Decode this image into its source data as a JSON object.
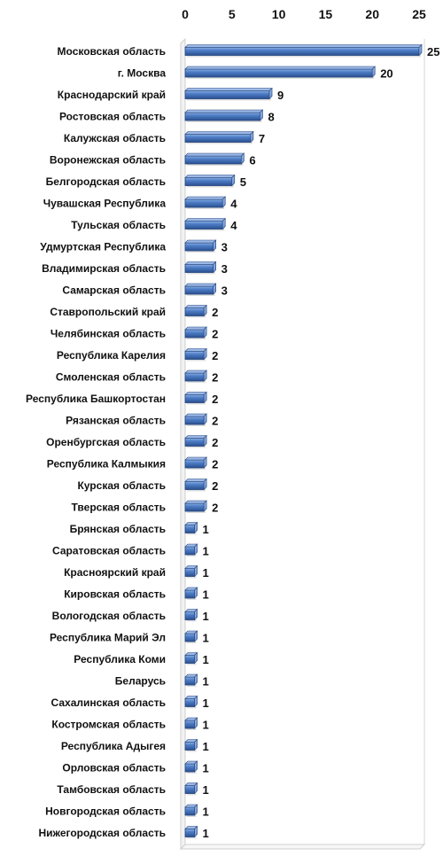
{
  "chart_data": {
    "type": "bar",
    "orientation": "horizontal",
    "title": "",
    "xlabel": "",
    "ylabel": "",
    "xlim": [
      0,
      25
    ],
    "ticks": [
      "0",
      "5",
      "10",
      "15",
      "20",
      "25"
    ],
    "tick_axis_position": "top",
    "grid": false,
    "bar_style": "3d-cylinder",
    "bar_color": "#3f6fb8",
    "categories": [
      "Московская область",
      "г. Москва",
      "Краснодарский край",
      "Ростовская область",
      "Калужская область",
      "Воронежская область",
      "Белгородская область",
      "Чувашская Республика",
      "Тульская область",
      "Удмуртская Республика",
      "Владимирская область",
      "Самарская область",
      "Ставропольский край",
      "Челябинская область",
      "Республика Карелия",
      "Смоленская область",
      "Республика Башкортостан",
      "Рязанская область",
      "Оренбургская область",
      "Республика Калмыкия",
      "Курская область",
      "Тверская область",
      "Брянская область",
      "Саратовская область",
      "Красноярский край",
      "Кировская область",
      "Вологодская область",
      "Республика Марий Эл",
      "Республика Коми",
      "Беларусь",
      "Сахалинская область",
      "Костромская область",
      "Республика Адыгея",
      "Орловская область",
      "Тамбовская область",
      "Новгородская область",
      "Нижегородская область"
    ],
    "values": [
      25,
      20,
      9,
      8,
      7,
      6,
      5,
      4,
      4,
      3,
      3,
      3,
      2,
      2,
      2,
      2,
      2,
      2,
      2,
      2,
      2,
      2,
      1,
      1,
      1,
      1,
      1,
      1,
      1,
      1,
      1,
      1,
      1,
      1,
      1,
      1,
      1
    ],
    "data_labels": [
      "25",
      "20",
      "9",
      "8",
      "7",
      "6",
      "5",
      "4",
      "4",
      "3",
      "3",
      "3",
      "2",
      "2",
      "2",
      "2",
      "2",
      "2",
      "2",
      "2",
      "2",
      "2",
      "1",
      "1",
      "1",
      "1",
      "1",
      "1",
      "1",
      "1",
      "1",
      "1",
      "1",
      "1",
      "1",
      "1",
      "1"
    ]
  }
}
